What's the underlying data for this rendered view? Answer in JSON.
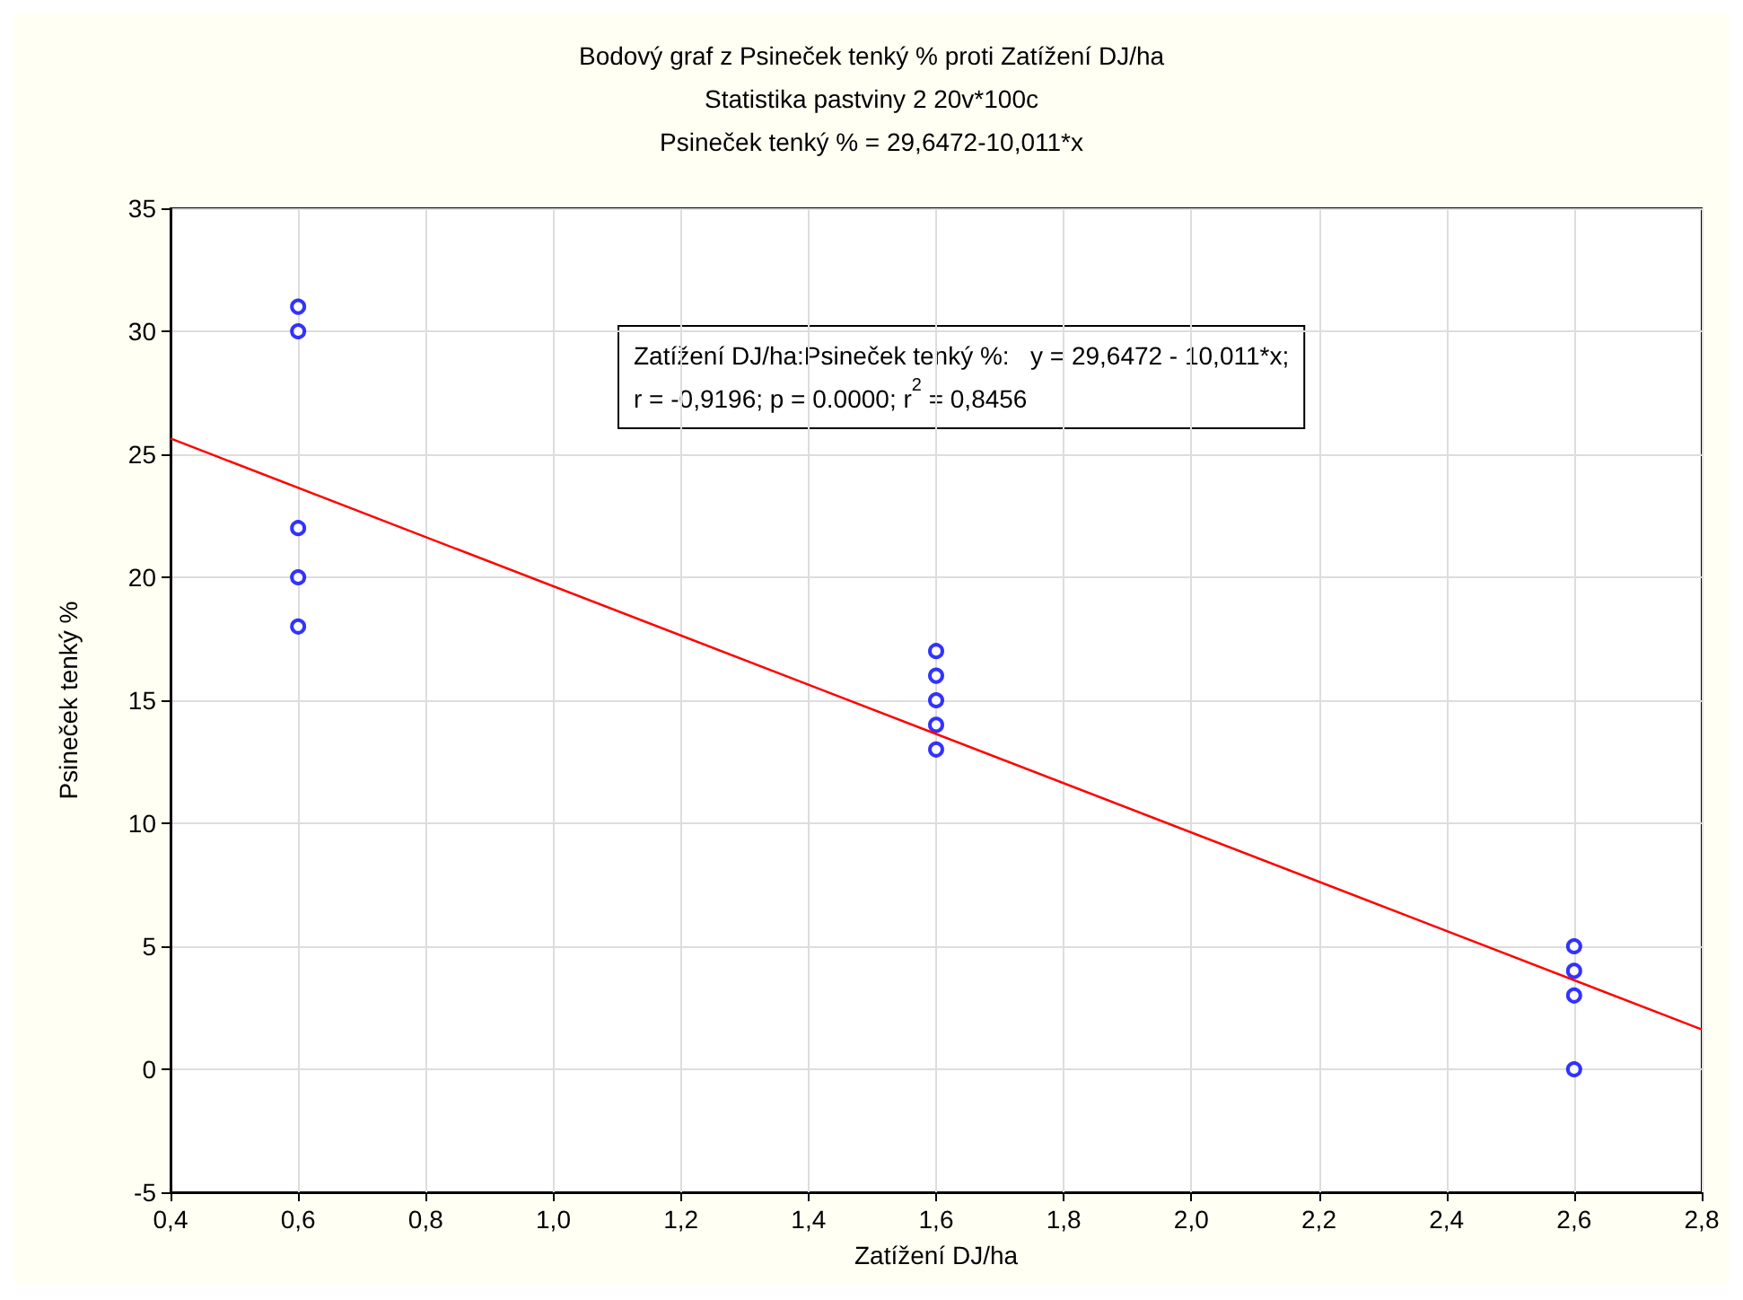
{
  "chart_data": {
    "type": "scatter",
    "title": "Bodový graf z Psineček tenký % proti Zatížení DJ/ha",
    "subtitle": "Statistika pastviny 2 20v*100c\nPsineček tenký % = 29,6472-10,011*x",
    "xlabel": "Zatížení DJ/ha",
    "ylabel": "Psineček tenký %",
    "annotations": [
      "Zatížení DJ/ha:Psineček tenký %:   y = 29,6472 - 10,011*x;\nr = -0,9196; p = 0.0000; r$^{2}$ = 0,8456"
    ],
    "series": [
      {
        "color": "#0000ff",
        "marker": "circle",
        "x": [
          0.6,
          0.6,
          0.6,
          0.6,
          0.6,
          1.6,
          1.6,
          1.6,
          1.6,
          1.6,
          2.6,
          2.6,
          2.6,
          2.6
        ],
        "values": [
          31,
          30,
          22,
          20,
          18,
          17,
          16,
          15,
          14,
          13,
          5,
          4,
          3,
          0
        ]
      },
      {
        "type": "line",
        "color": "#ff0000",
        "marker": "none",
        "x": [
          0.4,
          2.8
        ],
        "values": [
          25.64,
          1.62
        ]
      }
    ],
    "xlim": [
      0.4,
      2.8
    ],
    "xticks": [
      {
        "value": 0.4,
        "label": "0,4"
      },
      {
        "value": 0.6,
        "label": "0,6"
      },
      {
        "value": 0.8,
        "label": "0,8"
      },
      {
        "value": 1.0,
        "label": "1,0"
      },
      {
        "value": 1.2,
        "label": "1,2"
      },
      {
        "value": 1.4,
        "label": "1,4"
      },
      {
        "value": 1.6,
        "label": "1,6"
      },
      {
        "value": 1.8,
        "label": "1,8"
      },
      {
        "value": 2.0,
        "label": "2,0"
      },
      {
        "value": 2.2,
        "label": "2,2"
      },
      {
        "value": 2.4,
        "label": "2,4"
      },
      {
        "value": 2.6,
        "label": "2,6"
      },
      {
        "value": 2.8,
        "label": "2,8"
      }
    ],
    "ylim": [
      -5,
      35
    ],
    "yticks": [
      -5,
      0,
      5,
      10,
      15,
      20,
      25,
      30,
      35
    ],
    "grid": true
  }
}
